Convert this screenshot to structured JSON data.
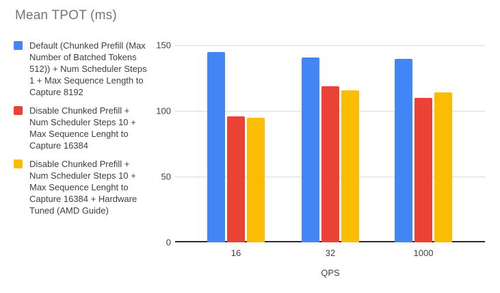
{
  "title": "Mean TPOT (ms)",
  "colors": {
    "series_blue": "#4285F4",
    "series_red": "#EA4335",
    "series_yellow": "#FBBC04",
    "title_text": "#757575",
    "legend_text": "#3c4043",
    "axis_text": "#424242",
    "gridline": "#d9d9d9",
    "axis_line": "#2b2b2b"
  },
  "legend": {
    "items": [
      {
        "color": "#4285F4",
        "lines": [
          "Default (Chunked Prefill (Max",
          "Number of Batched Tokens",
          "512)) + Num Scheduler Steps",
          "1 + Max Sequence Length to",
          "Capture 8192"
        ]
      },
      {
        "color": "#EA4335",
        "lines": [
          "Disable Chunked Prefill +",
          "Num Scheduler Steps 10 +",
          "Max Sequence Lenght to",
          "Capture 16384"
        ]
      },
      {
        "color": "#FBBC04",
        "lines": [
          "Disable Chunked Prefill +",
          "Num Scheduler Steps 10 +",
          "Max Sequence Lenght to",
          "Capture 16384 + Hardware",
          "Tuned (AMD Guide)"
        ]
      }
    ]
  },
  "chart_data": {
    "type": "bar",
    "title": "Mean TPOT (ms)",
    "categories": [
      "16",
      "32",
      "1000"
    ],
    "series": [
      {
        "name": "Default (Chunked Prefill (Max Number of Batched Tokens 512)) + Num Scheduler Steps 1 + Max Sequence Length to Capture 8192",
        "color": "#4285F4",
        "values": [
          145,
          141,
          140
        ]
      },
      {
        "name": "Disable Chunked Prefill + Num Scheduler Steps 10 + Max Sequence Lenght to Capture 16384",
        "color": "#EA4335",
        "values": [
          96,
          119,
          110
        ]
      },
      {
        "name": "Disable Chunked Prefill + Num Scheduler Steps 10 + Max Sequence Lenght to Capture 16384 + Hardware Tuned (AMD Guide)",
        "color": "#FBBC04",
        "values": [
          95,
          116,
          114
        ]
      }
    ],
    "xlabel": "QPS",
    "ylabel": "",
    "ylim": [
      0,
      150
    ],
    "yticks": [
      0,
      50,
      100,
      150
    ],
    "grid": true,
    "legend_position": "left"
  }
}
